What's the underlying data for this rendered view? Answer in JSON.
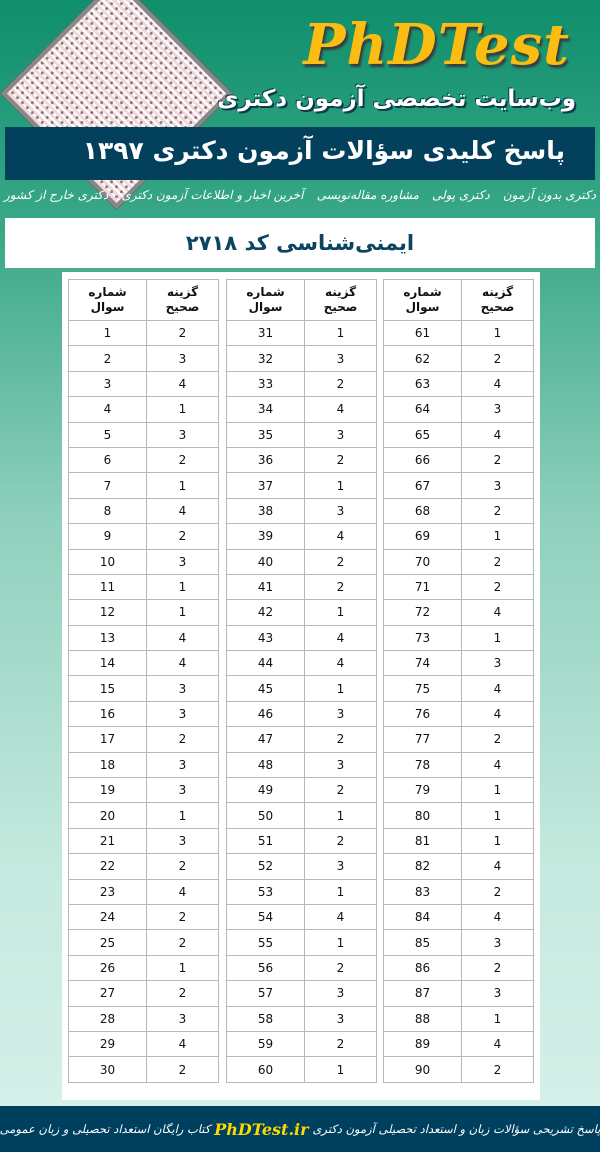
{
  "header": {
    "logo": "PhDTest",
    "tagline": "وب‌سایت تخصصی آزمون دکتری",
    "banner": "پاسخ کلیدی سؤالات آزمون دکتری ۱۳۹۷",
    "brand_color": "#fbbd12",
    "banner_color": "#02405c"
  },
  "nav": {
    "items": [
      {
        "label": "دکتری بدون آزمون"
      },
      {
        "label": "دکتری پولی"
      },
      {
        "label": "مشاوره مقاله‌نویسی"
      },
      {
        "label": "آخرین اخبار و اطلاعات آزمون دکتری"
      },
      {
        "label": "دکتری خارج از کشور"
      }
    ]
  },
  "title": "ایمنی‌شناسی کد ۲۷۱۸",
  "table_headers": {
    "question": [
      "شماره",
      "سوال"
    ],
    "answer": [
      "گزینه",
      "صحیح"
    ]
  },
  "tables": [
    [
      [
        1,
        2
      ],
      [
        2,
        3
      ],
      [
        3,
        4
      ],
      [
        4,
        1
      ],
      [
        5,
        3
      ],
      [
        6,
        2
      ],
      [
        7,
        1
      ],
      [
        8,
        4
      ],
      [
        9,
        2
      ],
      [
        10,
        3
      ],
      [
        11,
        1
      ],
      [
        12,
        1
      ],
      [
        13,
        4
      ],
      [
        14,
        4
      ],
      [
        15,
        3
      ],
      [
        16,
        3
      ],
      [
        17,
        2
      ],
      [
        18,
        3
      ],
      [
        19,
        3
      ],
      [
        20,
        1
      ],
      [
        21,
        3
      ],
      [
        22,
        2
      ],
      [
        23,
        4
      ],
      [
        24,
        2
      ],
      [
        25,
        2
      ],
      [
        26,
        1
      ],
      [
        27,
        2
      ],
      [
        28,
        3
      ],
      [
        29,
        4
      ],
      [
        30,
        2
      ]
    ],
    [
      [
        31,
        1
      ],
      [
        32,
        3
      ],
      [
        33,
        2
      ],
      [
        34,
        4
      ],
      [
        35,
        3
      ],
      [
        36,
        2
      ],
      [
        37,
        1
      ],
      [
        38,
        3
      ],
      [
        39,
        4
      ],
      [
        40,
        2
      ],
      [
        41,
        2
      ],
      [
        42,
        1
      ],
      [
        43,
        4
      ],
      [
        44,
        4
      ],
      [
        45,
        1
      ],
      [
        46,
        3
      ],
      [
        47,
        2
      ],
      [
        48,
        3
      ],
      [
        49,
        2
      ],
      [
        50,
        1
      ],
      [
        51,
        2
      ],
      [
        52,
        3
      ],
      [
        53,
        1
      ],
      [
        54,
        4
      ],
      [
        55,
        1
      ],
      [
        56,
        2
      ],
      [
        57,
        3
      ],
      [
        58,
        3
      ],
      [
        59,
        2
      ],
      [
        60,
        1
      ]
    ],
    [
      [
        61,
        1
      ],
      [
        62,
        2
      ],
      [
        63,
        4
      ],
      [
        64,
        3
      ],
      [
        65,
        4
      ],
      [
        66,
        2
      ],
      [
        67,
        3
      ],
      [
        68,
        2
      ],
      [
        69,
        1
      ],
      [
        70,
        2
      ],
      [
        71,
        2
      ],
      [
        72,
        4
      ],
      [
        73,
        1
      ],
      [
        74,
        3
      ],
      [
        75,
        4
      ],
      [
        76,
        4
      ],
      [
        77,
        2
      ],
      [
        78,
        4
      ],
      [
        79,
        1
      ],
      [
        80,
        1
      ],
      [
        81,
        1
      ],
      [
        82,
        4
      ],
      [
        83,
        2
      ],
      [
        84,
        4
      ],
      [
        85,
        3
      ],
      [
        86,
        2
      ],
      [
        87,
        3
      ],
      [
        88,
        1
      ],
      [
        89,
        4
      ],
      [
        90,
        2
      ]
    ]
  ],
  "footer": {
    "before": "پاسخ تشریحی سؤالات زبان و استعداد تحصیلی آزمون دکتری",
    "brand": "PhDTest.ir",
    "after": "کتاب رایگان استعداد تحصیلی و زبان عمومی"
  }
}
